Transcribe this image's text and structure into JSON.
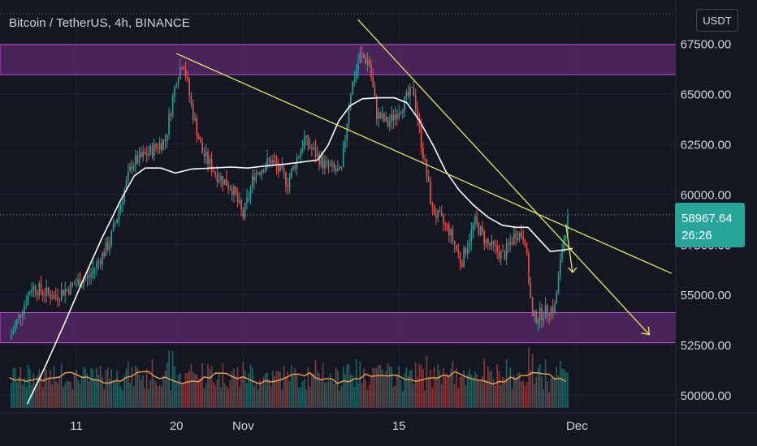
{
  "header": {
    "title": "Bitcoin / TetherUS, 4h, BINANCE",
    "currency_button": "USDT"
  },
  "price_badge": {
    "price": "58967.64",
    "countdown": "26:26"
  },
  "colors": {
    "background": "#131722",
    "bull": "#26a69a",
    "bear": "#ef5350",
    "zone_fill": "#5b2a6e",
    "zone_border": "#c04ad6",
    "trendline": "#e8e85a",
    "moving_average": "#ffffff",
    "volume_ma": "#f0a04b",
    "badge": "#26a69a"
  },
  "chart_data": {
    "type": "candlestick",
    "symbol": "Bitcoin / TetherUS",
    "timeframe": "4h",
    "exchange": "BINANCE",
    "ylim": [
      49300,
      68800
    ],
    "y_ticks": [
      50000,
      52500,
      55000,
      57500,
      60000,
      62500,
      65000,
      67500
    ],
    "y_tick_labels": [
      "50000.00",
      "52500.00",
      "55000.00",
      "57500.00",
      "60000.00",
      "62500.00",
      "65000.00",
      "67500.00"
    ],
    "x_tick_labels": [
      {
        "label": "11",
        "day": 6.0
      },
      {
        "label": "20",
        "day": 15.0
      },
      {
        "label": "Nov",
        "day": 21.0
      },
      {
        "label": "15",
        "day": 35.0
      },
      {
        "label": "Dec",
        "day": 51.0
      }
    ],
    "x_domain_days": [
      0,
      59.5
    ],
    "last_price": 58967.64,
    "current_price_line": 58967.64,
    "series": [
      {
        "name": "Close",
        "points": [
          [
            0.0,
            52800
          ],
          [
            2.0,
            55400
          ],
          [
            4.0,
            54900
          ],
          [
            5.2,
            55300
          ],
          [
            7.2,
            55900
          ],
          [
            9.0,
            57600
          ],
          [
            11.0,
            61500
          ],
          [
            12.6,
            62100
          ],
          [
            14.0,
            62700
          ],
          [
            15.0,
            65800
          ],
          [
            15.6,
            66700
          ],
          [
            16.4,
            64200
          ],
          [
            17.3,
            62100
          ],
          [
            18.6,
            61000
          ],
          [
            20.0,
            60300
          ],
          [
            21.0,
            58900
          ],
          [
            22.0,
            61000
          ],
          [
            23.5,
            61700
          ],
          [
            25.0,
            60600
          ],
          [
            26.5,
            62700
          ],
          [
            28.2,
            61500
          ],
          [
            29.8,
            61000
          ],
          [
            30.6,
            65000
          ],
          [
            31.5,
            66900
          ],
          [
            32.3,
            66600
          ],
          [
            33.0,
            64000
          ],
          [
            34.0,
            63500
          ],
          [
            35.5,
            64600
          ],
          [
            36.3,
            65200
          ],
          [
            37.0,
            62600
          ],
          [
            38.0,
            59200
          ],
          [
            39.5,
            58200
          ],
          [
            40.6,
            56600
          ],
          [
            41.8,
            58600
          ],
          [
            43.0,
            57500
          ],
          [
            44.4,
            56900
          ],
          [
            45.5,
            58100
          ],
          [
            46.3,
            57900
          ],
          [
            47.0,
            53800
          ],
          [
            48.0,
            54100
          ],
          [
            49.0,
            54400
          ],
          [
            49.8,
            57800
          ],
          [
            50.3,
            58967.64
          ]
        ]
      },
      {
        "name": "Moving Average",
        "points": [
          [
            1.6,
            49550
          ],
          [
            3.2,
            51400
          ],
          [
            4.9,
            53500
          ],
          [
            6.6,
            55700
          ],
          [
            8.3,
            57800
          ],
          [
            9.9,
            59600
          ],
          [
            11.2,
            60900
          ],
          [
            12.2,
            61300
          ],
          [
            13.6,
            61300
          ],
          [
            14.9,
            61050
          ],
          [
            16.4,
            61250
          ],
          [
            18.2,
            61300
          ],
          [
            19.9,
            61350
          ],
          [
            21.4,
            61300
          ],
          [
            23.0,
            61400
          ],
          [
            24.8,
            61500
          ],
          [
            26.3,
            61600
          ],
          [
            27.7,
            61700
          ],
          [
            28.6,
            62400
          ],
          [
            29.6,
            63650
          ],
          [
            30.6,
            64400
          ],
          [
            31.7,
            64750
          ],
          [
            33.2,
            64800
          ],
          [
            34.6,
            64800
          ],
          [
            35.7,
            64550
          ],
          [
            36.8,
            63700
          ],
          [
            38.1,
            62400
          ],
          [
            39.2,
            61150
          ],
          [
            40.4,
            60200
          ],
          [
            41.7,
            59450
          ],
          [
            43.0,
            58850
          ],
          [
            44.3,
            58450
          ],
          [
            45.5,
            58350
          ],
          [
            46.6,
            58350
          ],
          [
            47.5,
            57800
          ],
          [
            48.6,
            57150
          ],
          [
            49.6,
            57200
          ],
          [
            50.6,
            57300
          ]
        ]
      }
    ],
    "zones": [
      {
        "from": 65950,
        "to": 67450
      },
      {
        "from": 52600,
        "to": 54100
      }
    ],
    "trendlines": [
      {
        "from": [
          15.0,
          67000
        ],
        "to": [
          59.5,
          56050
        ]
      },
      {
        "from": [
          31.3,
          68700
        ],
        "to": [
          57.5,
          53000
        ],
        "arrow": true
      }
    ],
    "annotations": [
      {
        "type": "arrow",
        "from": [
          50.0,
          58500
        ],
        "to": [
          50.6,
          56100
        ]
      }
    ]
  }
}
